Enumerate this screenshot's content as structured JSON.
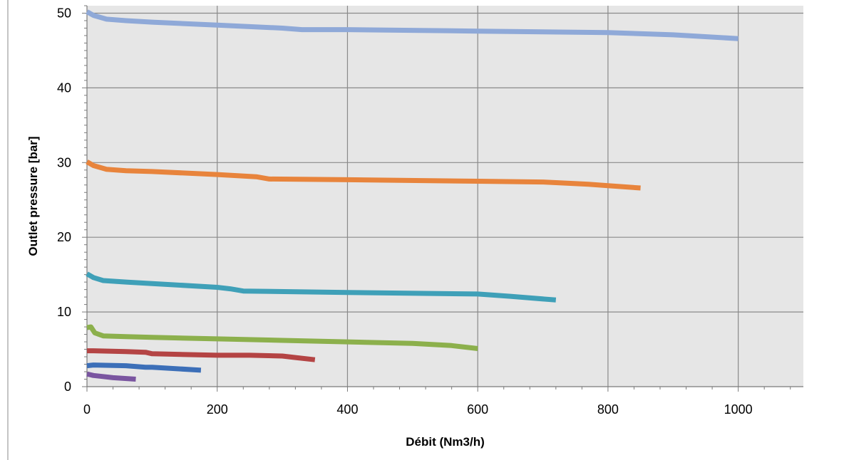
{
  "chart_data": {
    "type": "line",
    "title": "",
    "xlabel": "Débit (Nm3/h)",
    "ylabel": "Outlet pressure [bar]",
    "xlim": [
      0,
      1100
    ],
    "ylim": [
      0,
      51
    ],
    "x_ticks": [
      0,
      200,
      400,
      600,
      800,
      1000
    ],
    "y_ticks": [
      0,
      10,
      20,
      30,
      40,
      50
    ],
    "grid": true,
    "legend": "none",
    "background": "#e6e6e6",
    "series": [
      {
        "color": "#8fa9d8",
        "points": [
          [
            0,
            50.2
          ],
          [
            10,
            49.7
          ],
          [
            30,
            49.2
          ],
          [
            60,
            49.0
          ],
          [
            100,
            48.8
          ],
          [
            200,
            48.4
          ],
          [
            300,
            48.0
          ],
          [
            330,
            47.8
          ],
          [
            400,
            47.8
          ],
          [
            600,
            47.6
          ],
          [
            800,
            47.4
          ],
          [
            900,
            47.1
          ],
          [
            1000,
            46.6
          ]
        ]
      },
      {
        "color": "#e8843c",
        "points": [
          [
            0,
            30.1
          ],
          [
            10,
            29.6
          ],
          [
            30,
            29.1
          ],
          [
            60,
            28.9
          ],
          [
            100,
            28.8
          ],
          [
            200,
            28.4
          ],
          [
            260,
            28.1
          ],
          [
            280,
            27.8
          ],
          [
            400,
            27.7
          ],
          [
            600,
            27.5
          ],
          [
            700,
            27.4
          ],
          [
            770,
            27.1
          ],
          [
            800,
            26.9
          ],
          [
            850,
            26.6
          ]
        ]
      },
      {
        "color": "#3fa0b8",
        "points": [
          [
            0,
            15.1
          ],
          [
            10,
            14.6
          ],
          [
            25,
            14.2
          ],
          [
            60,
            14.0
          ],
          [
            100,
            13.8
          ],
          [
            200,
            13.3
          ],
          [
            220,
            13.1
          ],
          [
            240,
            12.8
          ],
          [
            400,
            12.6
          ],
          [
            600,
            12.4
          ],
          [
            650,
            12.1
          ],
          [
            720,
            11.6
          ]
        ]
      },
      {
        "color": "#8cb04c",
        "points": [
          [
            0,
            7.9
          ],
          [
            6,
            8.0
          ],
          [
            12,
            7.2
          ],
          [
            25,
            6.8
          ],
          [
            60,
            6.7
          ],
          [
            100,
            6.6
          ],
          [
            200,
            6.4
          ],
          [
            300,
            6.2
          ],
          [
            400,
            6.0
          ],
          [
            500,
            5.8
          ],
          [
            560,
            5.5
          ],
          [
            600,
            5.1
          ]
        ]
      },
      {
        "color": "#b44444",
        "points": [
          [
            0,
            4.8
          ],
          [
            10,
            4.8
          ],
          [
            60,
            4.7
          ],
          [
            90,
            4.6
          ],
          [
            100,
            4.4
          ],
          [
            200,
            4.2
          ],
          [
            250,
            4.2
          ],
          [
            300,
            4.1
          ],
          [
            320,
            3.9
          ],
          [
            350,
            3.6
          ]
        ]
      },
      {
        "color": "#3c6fb8",
        "points": [
          [
            0,
            2.8
          ],
          [
            10,
            2.9
          ],
          [
            60,
            2.8
          ],
          [
            90,
            2.6
          ],
          [
            100,
            2.6
          ],
          [
            175,
            2.2
          ]
        ]
      },
      {
        "color": "#7a55a0",
        "points": [
          [
            0,
            1.7
          ],
          [
            10,
            1.5
          ],
          [
            20,
            1.4
          ],
          [
            40,
            1.2
          ],
          [
            75,
            1.0
          ]
        ]
      }
    ]
  }
}
